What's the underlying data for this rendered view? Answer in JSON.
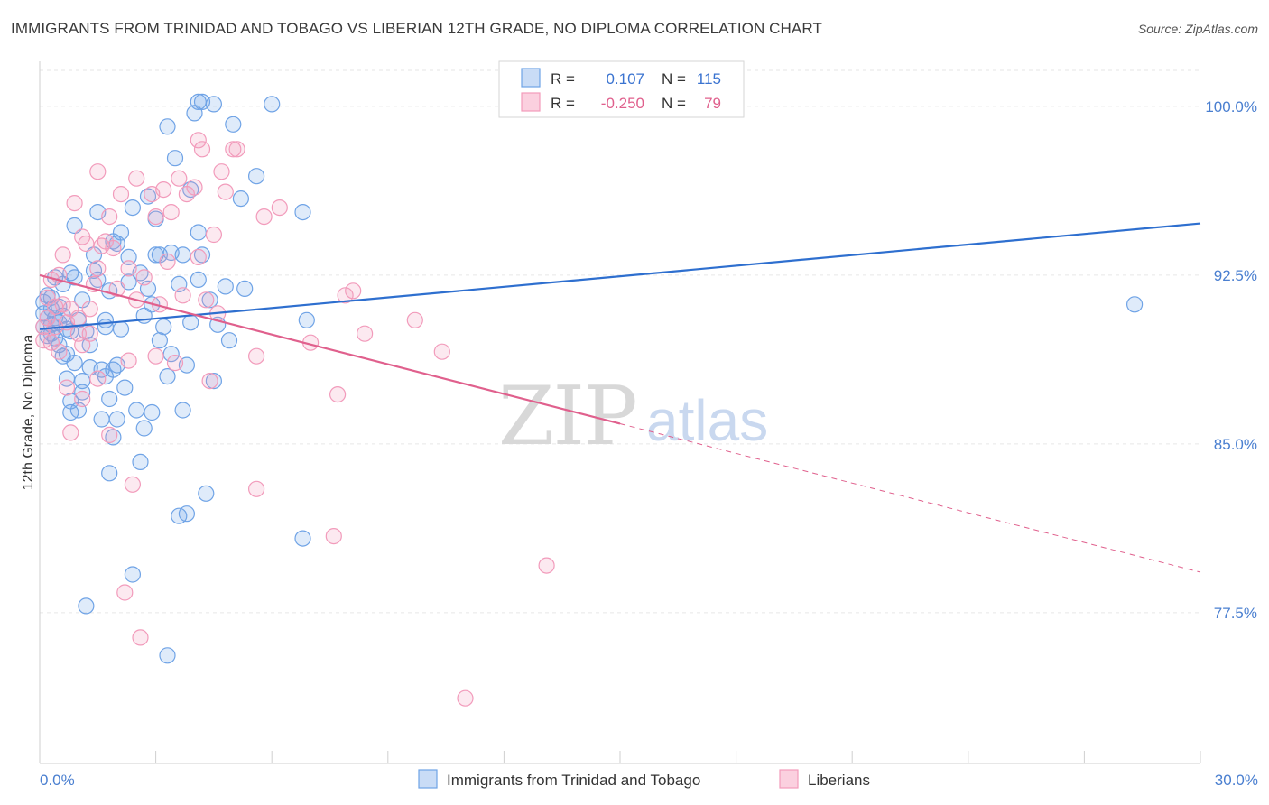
{
  "header": {
    "title": "IMMIGRANTS FROM TRINIDAD AND TOBAGO VS LIBERIAN 12TH GRADE, NO DIPLOMA CORRELATION CHART",
    "source": "Source: ZipAtlas.com"
  },
  "legend_box": {
    "rows": [
      {
        "r_label": "R =",
        "r_value": "0.107",
        "n_label": "N =",
        "n_value": "115"
      },
      {
        "r_label": "R =",
        "r_value": "-0.250",
        "n_label": "N =",
        "n_value": "79"
      }
    ]
  },
  "watermark": {
    "zip": "ZIP",
    "atlas": "atlas"
  },
  "colors": {
    "blue": "#6fa3e6",
    "blue_line": "#2e6fcf",
    "pink": "#f29bbb",
    "pink_line": "#e0608d",
    "grid": "#e6e6e6"
  },
  "chart_data": {
    "type": "scatter",
    "xlabel": "",
    "ylabel": "12th Grade, No Diploma",
    "xlim": [
      0,
      30
    ],
    "ylim": [
      70.8,
      102.0
    ],
    "x_tick_labels": [
      "0.0%",
      "30.0%"
    ],
    "y_ticks": [
      77.5,
      85.0,
      92.5,
      100.0
    ],
    "y_tick_labels": [
      "77.5%",
      "85.0%",
      "92.5%",
      "100.0%"
    ],
    "grid": true,
    "legend_position": "bottom",
    "series": [
      {
        "name": "Immigrants from Trinidad and Tobago",
        "color": "#6fa3e6",
        "R": 0.107,
        "N": 115,
        "trend": {
          "x": [
            0,
            30
          ],
          "y": [
            90.1,
            94.8
          ],
          "style": "solid"
        },
        "points": [
          [
            0.1,
            90.8
          ],
          [
            0.1,
            90.2
          ],
          [
            0.1,
            91.3
          ],
          [
            0.2,
            91.6
          ],
          [
            0.2,
            89.8
          ],
          [
            0.2,
            90.6
          ],
          [
            0.3,
            91.0
          ],
          [
            0.3,
            90.3
          ],
          [
            0.3,
            89.9
          ],
          [
            0.3,
            91.5
          ],
          [
            0.4,
            92.4
          ],
          [
            0.4,
            90.6
          ],
          [
            0.4,
            89.7
          ],
          [
            0.5,
            90.4
          ],
          [
            0.5,
            91.1
          ],
          [
            0.5,
            89.4
          ],
          [
            0.6,
            92.1
          ],
          [
            0.6,
            90.7
          ],
          [
            0.6,
            88.9
          ],
          [
            0.7,
            90.1
          ],
          [
            0.7,
            89.0
          ],
          [
            0.7,
            87.9
          ],
          [
            0.8,
            92.6
          ],
          [
            0.8,
            90.0
          ],
          [
            0.8,
            86.9
          ],
          [
            0.8,
            86.4
          ],
          [
            0.9,
            94.7
          ],
          [
            0.9,
            92.4
          ],
          [
            0.9,
            88.6
          ],
          [
            1.0,
            90.5
          ],
          [
            1.0,
            86.5
          ],
          [
            1.1,
            91.4
          ],
          [
            1.1,
            87.3
          ],
          [
            1.1,
            87.8
          ],
          [
            1.2,
            90.0
          ],
          [
            1.2,
            77.8
          ],
          [
            1.3,
            89.4
          ],
          [
            1.3,
            88.4
          ],
          [
            1.4,
            93.4
          ],
          [
            1.4,
            92.7
          ],
          [
            1.5,
            92.3
          ],
          [
            1.5,
            95.3
          ],
          [
            1.6,
            88.3
          ],
          [
            1.6,
            86.1
          ],
          [
            1.7,
            90.2
          ],
          [
            1.7,
            90.5
          ],
          [
            1.7,
            88.0
          ],
          [
            1.8,
            91.8
          ],
          [
            1.8,
            87.0
          ],
          [
            1.8,
            83.7
          ],
          [
            1.9,
            94.0
          ],
          [
            1.9,
            85.3
          ],
          [
            1.9,
            88.3
          ],
          [
            2.0,
            86.1
          ],
          [
            2.0,
            88.5
          ],
          [
            2.0,
            93.9
          ],
          [
            2.1,
            94.4
          ],
          [
            2.1,
            90.1
          ],
          [
            2.2,
            87.5
          ],
          [
            2.3,
            93.3
          ],
          [
            2.3,
            92.2
          ],
          [
            2.4,
            95.5
          ],
          [
            2.4,
            79.2
          ],
          [
            2.5,
            86.5
          ],
          [
            2.6,
            92.6
          ],
          [
            2.6,
            84.2
          ],
          [
            2.7,
            90.7
          ],
          [
            2.7,
            85.7
          ],
          [
            2.8,
            96.0
          ],
          [
            2.8,
            91.9
          ],
          [
            2.9,
            91.2
          ],
          [
            2.9,
            86.4
          ],
          [
            3.0,
            93.4
          ],
          [
            3.0,
            95.0
          ],
          [
            3.1,
            89.6
          ],
          [
            3.1,
            93.4
          ],
          [
            3.2,
            90.2
          ],
          [
            3.3,
            99.1
          ],
          [
            3.3,
            88.0
          ],
          [
            3.3,
            75.6
          ],
          [
            3.4,
            93.5
          ],
          [
            3.4,
            89.0
          ],
          [
            3.5,
            97.7
          ],
          [
            3.6,
            92.1
          ],
          [
            3.6,
            81.8
          ],
          [
            3.7,
            86.5
          ],
          [
            3.7,
            93.4
          ],
          [
            3.8,
            81.9
          ],
          [
            3.8,
            88.5
          ],
          [
            3.9,
            96.3
          ],
          [
            3.9,
            90.4
          ],
          [
            4.0,
            99.7
          ],
          [
            4.1,
            100.2
          ],
          [
            4.1,
            94.4
          ],
          [
            4.1,
            92.3
          ],
          [
            4.2,
            100.2
          ],
          [
            4.2,
            93.4
          ],
          [
            4.3,
            82.8
          ],
          [
            4.4,
            91.4
          ],
          [
            4.5,
            87.8
          ],
          [
            4.5,
            100.1
          ],
          [
            4.6,
            90.3
          ],
          [
            4.8,
            92.0
          ],
          [
            4.9,
            89.6
          ],
          [
            5.0,
            99.2
          ],
          [
            5.2,
            95.9
          ],
          [
            5.3,
            91.9
          ],
          [
            5.6,
            96.9
          ],
          [
            6.0,
            100.1
          ],
          [
            6.8,
            80.8
          ],
          [
            6.8,
            95.3
          ],
          [
            6.9,
            90.5
          ],
          [
            28.3,
            91.2
          ]
        ]
      },
      {
        "name": "Liberians",
        "color": "#f29bbb",
        "R": -0.25,
        "N": 79,
        "trend": {
          "x": [
            0,
            15
          ],
          "y": [
            92.5,
            85.9
          ],
          "style": "solid",
          "extension": {
            "x": [
              15,
              30
            ],
            "y": [
              85.9,
              79.3
            ],
            "style": "dashed"
          }
        },
        "points": [
          [
            0.1,
            90.2
          ],
          [
            0.1,
            89.6
          ],
          [
            0.2,
            91.5
          ],
          [
            0.2,
            90.6
          ],
          [
            0.3,
            92.3
          ],
          [
            0.3,
            89.5
          ],
          [
            0.4,
            91.1
          ],
          [
            0.4,
            90.2
          ],
          [
            0.5,
            89.1
          ],
          [
            0.5,
            92.5
          ],
          [
            0.6,
            93.4
          ],
          [
            0.6,
            91.2
          ],
          [
            0.7,
            90.4
          ],
          [
            0.7,
            87.5
          ],
          [
            0.8,
            91.0
          ],
          [
            0.8,
            85.5
          ],
          [
            0.9,
            95.7
          ],
          [
            1.0,
            90.6
          ],
          [
            1.0,
            89.9
          ],
          [
            1.1,
            94.2
          ],
          [
            1.1,
            87.0
          ],
          [
            1.1,
            89.4
          ],
          [
            1.2,
            93.9
          ],
          [
            1.3,
            91.0
          ],
          [
            1.3,
            89.9
          ],
          [
            1.4,
            92.1
          ],
          [
            1.5,
            97.1
          ],
          [
            1.5,
            92.8
          ],
          [
            1.5,
            87.9
          ],
          [
            1.6,
            93.8
          ],
          [
            1.7,
            94.0
          ],
          [
            1.8,
            95.1
          ],
          [
            1.8,
            85.4
          ],
          [
            1.9,
            93.7
          ],
          [
            2.0,
            91.9
          ],
          [
            2.1,
            96.1
          ],
          [
            2.2,
            78.4
          ],
          [
            2.3,
            92.8
          ],
          [
            2.3,
            88.7
          ],
          [
            2.4,
            83.2
          ],
          [
            2.5,
            96.8
          ],
          [
            2.5,
            91.4
          ],
          [
            2.6,
            76.4
          ],
          [
            2.7,
            92.4
          ],
          [
            2.9,
            96.1
          ],
          [
            3.0,
            88.9
          ],
          [
            3.0,
            95.1
          ],
          [
            3.1,
            91.2
          ],
          [
            3.2,
            96.3
          ],
          [
            3.3,
            93.1
          ],
          [
            3.4,
            95.3
          ],
          [
            3.5,
            88.6
          ],
          [
            3.6,
            96.8
          ],
          [
            3.7,
            91.6
          ],
          [
            3.8,
            96.1
          ],
          [
            4.0,
            96.4
          ],
          [
            4.1,
            98.5
          ],
          [
            4.1,
            93.3
          ],
          [
            4.2,
            98.1
          ],
          [
            4.3,
            91.4
          ],
          [
            4.4,
            87.8
          ],
          [
            4.5,
            94.3
          ],
          [
            4.6,
            90.8
          ],
          [
            4.7,
            97.1
          ],
          [
            4.8,
            96.2
          ],
          [
            5.0,
            98.1
          ],
          [
            5.1,
            98.1
          ],
          [
            5.6,
            83.0
          ],
          [
            5.6,
            88.9
          ],
          [
            5.8,
            95.1
          ],
          [
            6.2,
            95.5
          ],
          [
            7.0,
            89.5
          ],
          [
            7.6,
            80.9
          ],
          [
            7.7,
            87.2
          ],
          [
            7.9,
            91.6
          ],
          [
            8.1,
            91.8
          ],
          [
            8.4,
            89.9
          ],
          [
            9.7,
            90.5
          ],
          [
            10.4,
            89.1
          ],
          [
            11.0,
            73.7
          ],
          [
            13.1,
            79.6
          ]
        ]
      }
    ]
  }
}
